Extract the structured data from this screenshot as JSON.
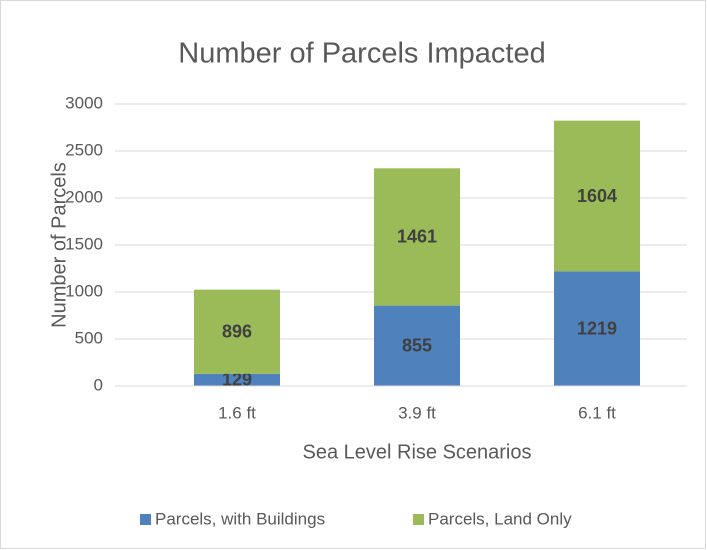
{
  "chart_data": {
    "type": "stacked_bar",
    "title": "Number of Parcels Impacted",
    "x_label": "Sea Level Rise Scenarios",
    "y_label": "Number of Parcels",
    "categories": [
      "1.6 ft",
      "3.9 ft",
      "6.1 ft"
    ],
    "series": [
      {
        "name": "Parcels, with Buildings",
        "color": "#4f81bd",
        "values": [
          129,
          855,
          1219
        ]
      },
      {
        "name": "Parcels, Land Only",
        "color": "#9bbb59",
        "values": [
          896,
          1461,
          1604
        ]
      }
    ],
    "ylim": [
      0,
      3000
    ],
    "yticks": [
      0,
      500,
      1000,
      1500,
      2000,
      2500,
      3000
    ],
    "grid": true,
    "legend": "bottom"
  }
}
